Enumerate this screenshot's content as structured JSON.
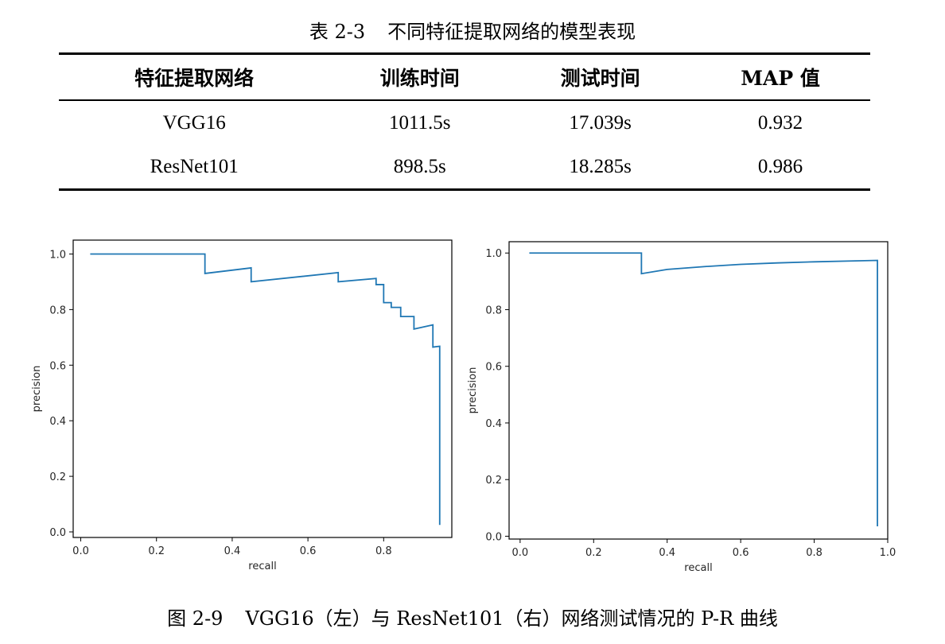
{
  "table": {
    "caption_num": "表 2-3",
    "caption_text": "不同特征提取网络的模型表现",
    "headers": [
      "特征提取网络",
      "训练时间",
      "测试时间",
      "MAP 值"
    ],
    "rows": [
      [
        "VGG16",
        "1011.5s",
        "17.039s",
        "0.932"
      ],
      [
        "ResNet101",
        "898.5s",
        "18.285s",
        "0.986"
      ]
    ]
  },
  "figure": {
    "caption_num": "图 2-9",
    "caption_text": "VGG16（左）与 ResNet101（右）网络测试情况的 P-R 曲线"
  },
  "chart_data": [
    {
      "type": "line",
      "title": "",
      "xlabel": "recall",
      "ylabel": "precision",
      "xlim": [
        -0.02,
        0.98
      ],
      "ylim": [
        -0.02,
        1.05
      ],
      "xticks": [
        0.0,
        0.2,
        0.4,
        0.6,
        0.8
      ],
      "xtick_labels": [
        "0.0",
        "0.2",
        "0.4",
        "0.6",
        "0.8"
      ],
      "yticks": [
        0.0,
        0.2,
        0.4,
        0.6,
        0.8,
        1.0
      ],
      "ytick_labels": [
        "0.0",
        "0.2",
        "0.4",
        "0.6",
        "0.8",
        "1.0"
      ],
      "line_color": "#1f77b4",
      "series": [
        {
          "name": "VGG16",
          "x": [
            0.025,
            0.328,
            0.328,
            0.45,
            0.45,
            0.68,
            0.68,
            0.78,
            0.78,
            0.8,
            0.8,
            0.82,
            0.82,
            0.845,
            0.845,
            0.865,
            0.865,
            0.88,
            0.88,
            0.93,
            0.93,
            0.948,
            0.948
          ],
          "y": [
            1.0,
            1.0,
            0.93,
            0.95,
            0.9,
            0.933,
            0.9,
            0.912,
            0.89,
            0.89,
            0.825,
            0.825,
            0.808,
            0.808,
            0.775,
            0.775,
            0.775,
            0.775,
            0.73,
            0.745,
            0.665,
            0.668,
            0.025
          ]
        }
      ]
    },
    {
      "type": "line",
      "title": "",
      "xlabel": "recall",
      "ylabel": "precision",
      "xlim": [
        -0.03,
        1.0
      ],
      "ylim": [
        -0.01,
        1.04
      ],
      "xticks": [
        0.0,
        0.2,
        0.4,
        0.6,
        0.8,
        1.0
      ],
      "xtick_labels": [
        "0.0",
        "0.2",
        "0.4",
        "0.6",
        "0.8",
        "1.0"
      ],
      "yticks": [
        0.0,
        0.2,
        0.4,
        0.6,
        0.8,
        1.0
      ],
      "ytick_labels": [
        "0.0",
        "0.2",
        "0.4",
        "0.6",
        "0.8",
        "1.0"
      ],
      "line_color": "#1f77b4",
      "series": [
        {
          "name": "ResNet101",
          "x": [
            0.025,
            0.33,
            0.33,
            0.4,
            0.5,
            0.6,
            0.7,
            0.8,
            0.9,
            0.972,
            0.972
          ],
          "y": [
            1.0,
            1.0,
            0.927,
            0.942,
            0.952,
            0.96,
            0.965,
            0.969,
            0.972,
            0.974,
            0.035
          ]
        }
      ]
    }
  ]
}
